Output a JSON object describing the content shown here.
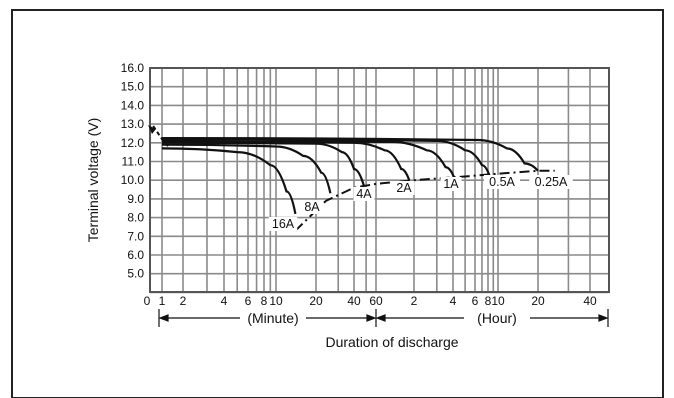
{
  "chart_data": {
    "type": "line",
    "title": "",
    "ylabel": "Terminal voltage (V)",
    "xlabel": "Duration of discharge",
    "ylim": [
      4.0,
      16.0
    ],
    "y_ticks": [
      "16.0",
      "15.0",
      "14.0",
      "13.0",
      "12.0",
      "11.0",
      "10.0",
      "9.0",
      "8.0",
      "7.0",
      "6.0",
      "5.0"
    ],
    "x_scale": "log (minutes section then hours section)",
    "x_ticks": [
      {
        "label": "0",
        "unit": "minute"
      },
      {
        "label": "1",
        "unit": "minute"
      },
      {
        "label": "2",
        "unit": "minute"
      },
      {
        "label": "4",
        "unit": "minute"
      },
      {
        "label": "6",
        "unit": "minute"
      },
      {
        "label": "8",
        "unit": "minute"
      },
      {
        "label": "10",
        "unit": "minute"
      },
      {
        "label": "20",
        "unit": "minute"
      },
      {
        "label": "40",
        "unit": "minute"
      },
      {
        "label": "60",
        "unit": "minute"
      },
      {
        "label": "2",
        "unit": "hour"
      },
      {
        "label": "4",
        "unit": "hour"
      },
      {
        "label": "6",
        "unit": "hour"
      },
      {
        "label": "8",
        "unit": "hour"
      },
      {
        "label": "10",
        "unit": "hour"
      },
      {
        "label": "20",
        "unit": "hour"
      },
      {
        "label": "40",
        "unit": "hour"
      }
    ],
    "range_labels": {
      "minute": "(Minute)",
      "hour": "(Hour)"
    },
    "grid": true,
    "series": [
      {
        "name": "16A",
        "points": [
          [
            1,
            11.7
          ],
          [
            5,
            11.5
          ],
          [
            9,
            10.8
          ],
          [
            12,
            9.4
          ],
          [
            14,
            8.2
          ]
        ]
      },
      {
        "name": "8A",
        "points": [
          [
            1,
            11.9
          ],
          [
            10,
            11.8
          ],
          [
            16,
            11.3
          ],
          [
            22,
            10.4
          ],
          [
            26,
            9.3
          ]
        ]
      },
      {
        "name": "4A",
        "points": [
          [
            1,
            12.0
          ],
          [
            20,
            11.95
          ],
          [
            32,
            11.5
          ],
          [
            40,
            10.6
          ],
          [
            48,
            9.7
          ]
        ]
      },
      {
        "name": "2A",
        "points": [
          [
            1,
            12.05
          ],
          [
            40,
            12.0
          ],
          [
            70,
            11.6
          ],
          [
            95,
            10.6
          ],
          [
            110,
            10.0
          ]
        ]
      },
      {
        "name": "1A",
        "points": [
          [
            1,
            12.1
          ],
          [
            80,
            12.05
          ],
          [
            150,
            11.6
          ],
          [
            210,
            10.7
          ],
          [
            250,
            10.0
          ]
        ]
      },
      {
        "name": "0.5A",
        "points": [
          [
            1,
            12.2
          ],
          [
            180,
            12.1
          ],
          [
            300,
            11.6
          ],
          [
            420,
            10.8
          ],
          [
            500,
            10.2
          ]
        ]
      },
      {
        "name": "0.25A",
        "points": [
          [
            1,
            12.25
          ],
          [
            380,
            12.15
          ],
          [
            700,
            11.7
          ],
          [
            950,
            10.9
          ],
          [
            1200,
            10.5
          ]
        ]
      }
    ],
    "end_voltage_line": [
      [
        14,
        7.3
      ],
      [
        24,
        8.9
      ],
      [
        40,
        9.6
      ],
      [
        60,
        9.8
      ],
      [
        120,
        10.0
      ],
      [
        300,
        10.2
      ],
      [
        600,
        10.35
      ],
      [
        1200,
        10.5
      ],
      [
        1500,
        10.5
      ]
    ],
    "initial_drop": [
      [
        0.6,
        12.9
      ],
      [
        1,
        12.2
      ],
      [
        1.3,
        11.7
      ]
    ]
  }
}
